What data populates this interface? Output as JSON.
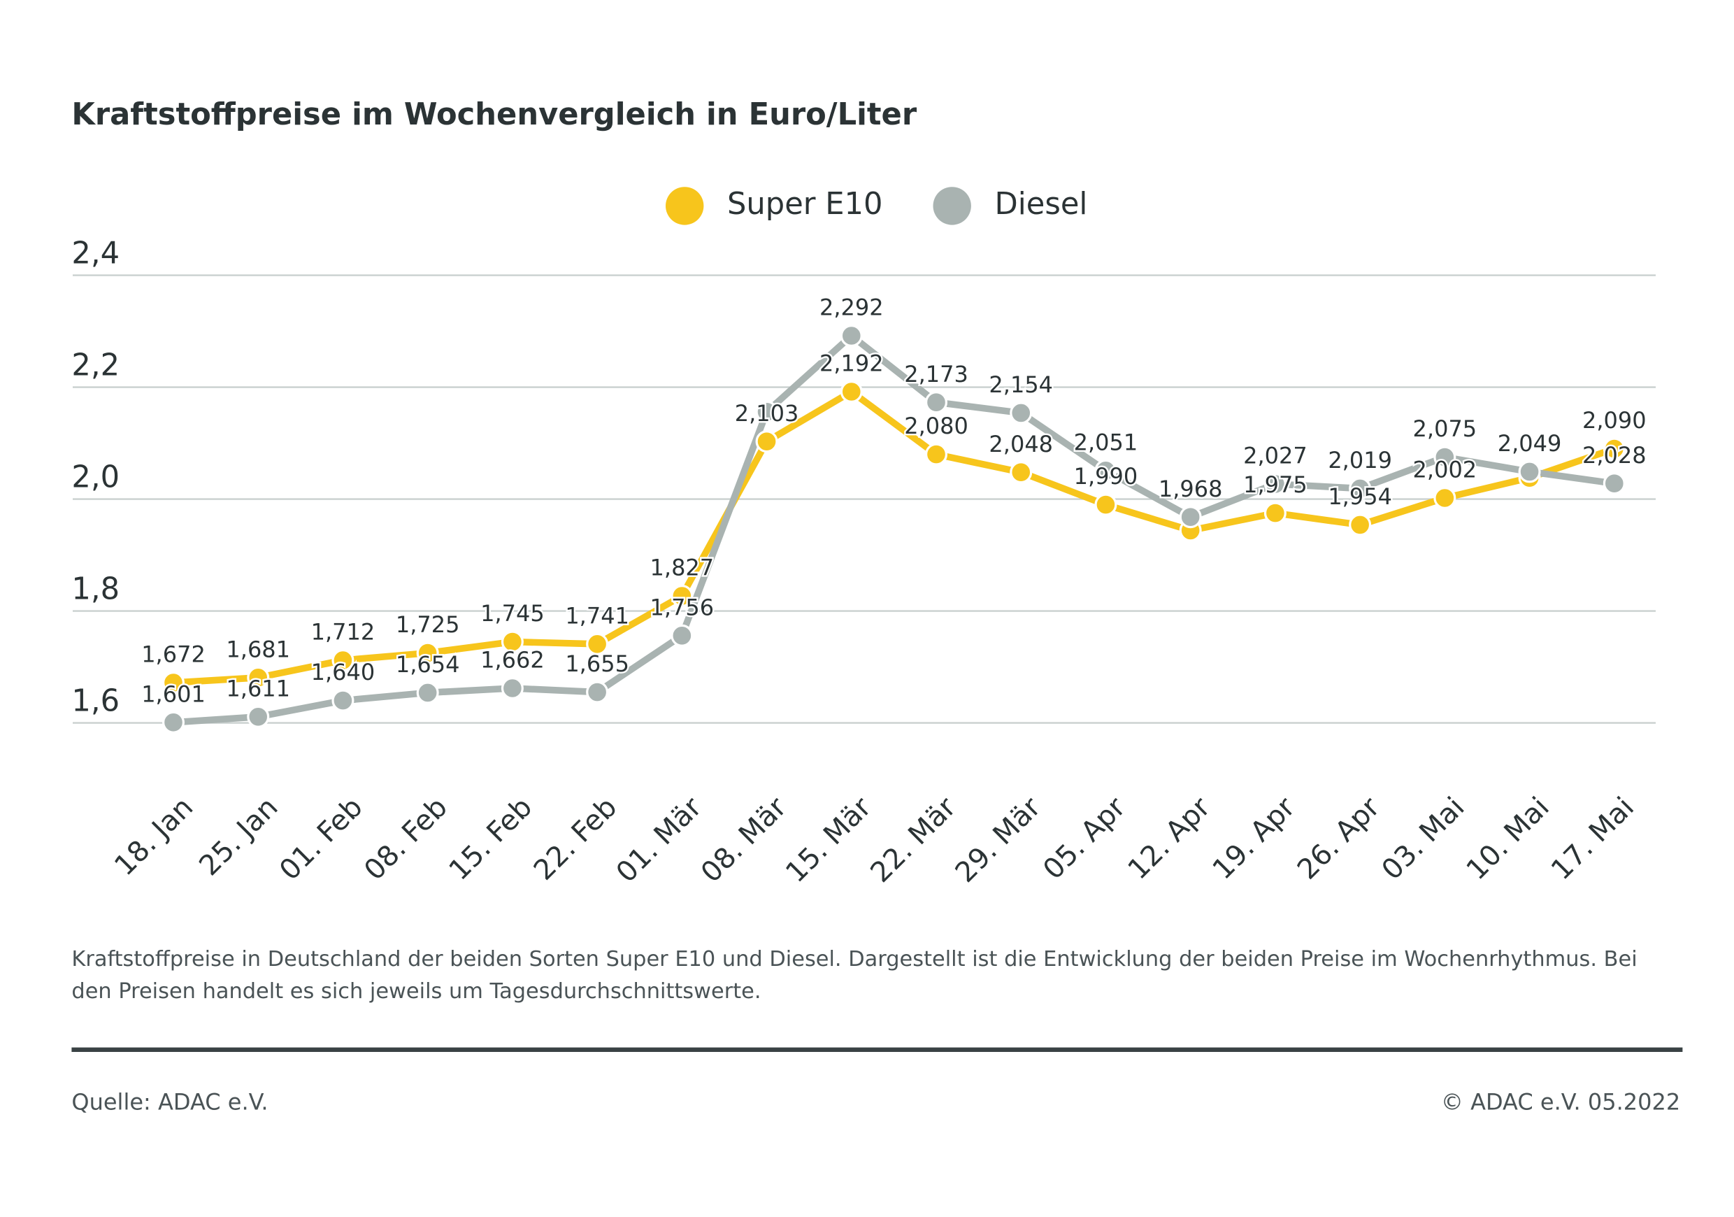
{
  "chart_data": {
    "type": "line",
    "title": "Kraftstoffpreise im Wochenvergleich in Euro/Liter",
    "categories": [
      "18. Jan",
      "25. Jan",
      "01. Feb",
      "08. Feb",
      "15. Feb",
      "22. Feb",
      "01. Mär",
      "08. Mär",
      "15. Mär",
      "22. Mär",
      "29. Mär",
      "05. Apr",
      "12. Apr",
      "19. Apr",
      "26. Apr",
      "03. Mai",
      "10. Mai",
      "17. Mai"
    ],
    "series": [
      {
        "name": "Super E10",
        "color": "#f7c51c",
        "values": [
          1.672,
          1.681,
          1.712,
          1.725,
          1.745,
          1.741,
          1.827,
          2.103,
          2.192,
          2.08,
          2.048,
          1.99,
          1.944,
          1.975,
          1.954,
          2.002,
          2.038,
          2.09
        ],
        "value_labels": [
          "1,672",
          "1,681",
          "1,712",
          "1,725",
          "1,745",
          "1,741",
          "1,827",
          "2,103",
          "2,192",
          "2,080",
          "2,048",
          "1,990",
          null,
          "1,975",
          "1,954",
          "2,002",
          null,
          "2,090"
        ]
      },
      {
        "name": "Diesel",
        "color": "#a9b3b1",
        "values": [
          1.601,
          1.611,
          1.64,
          1.654,
          1.662,
          1.655,
          1.756,
          2.156,
          2.292,
          2.173,
          2.154,
          2.051,
          1.968,
          2.027,
          2.019,
          2.075,
          2.049,
          2.028
        ],
        "value_labels": [
          "1,601",
          "1,611",
          "1,640",
          "1,654",
          "1,662",
          "1,655",
          "1,756",
          null,
          "2,292",
          "2,173",
          "2,154",
          "2,051",
          "1,968",
          "2,027",
          "2,019",
          "2,075",
          "2,049",
          "2,028"
        ]
      }
    ],
    "ylim": [
      1.6,
      2.4
    ],
    "yticks": [
      {
        "value": 1.6,
        "label": "1,6"
      },
      {
        "value": 1.8,
        "label": "1,8"
      },
      {
        "value": 2.0,
        "label": "2,0"
      },
      {
        "value": 2.2,
        "label": "2,2"
      },
      {
        "value": 2.4,
        "label": "2,4"
      }
    ],
    "grid": true,
    "legend": "top",
    "description": "Kraftstoffpreise in Deutschland der beiden Sorten Super E10 und Diesel. Dargestellt ist die Entwicklung der beiden Preise im Wochenrhythmus. Bei den Preisen handelt es sich jeweils um Tagesdurchschnittswerte.",
    "source": "Quelle: ADAC e.V.",
    "copyright": "© ADAC e.V. 05.2022"
  }
}
